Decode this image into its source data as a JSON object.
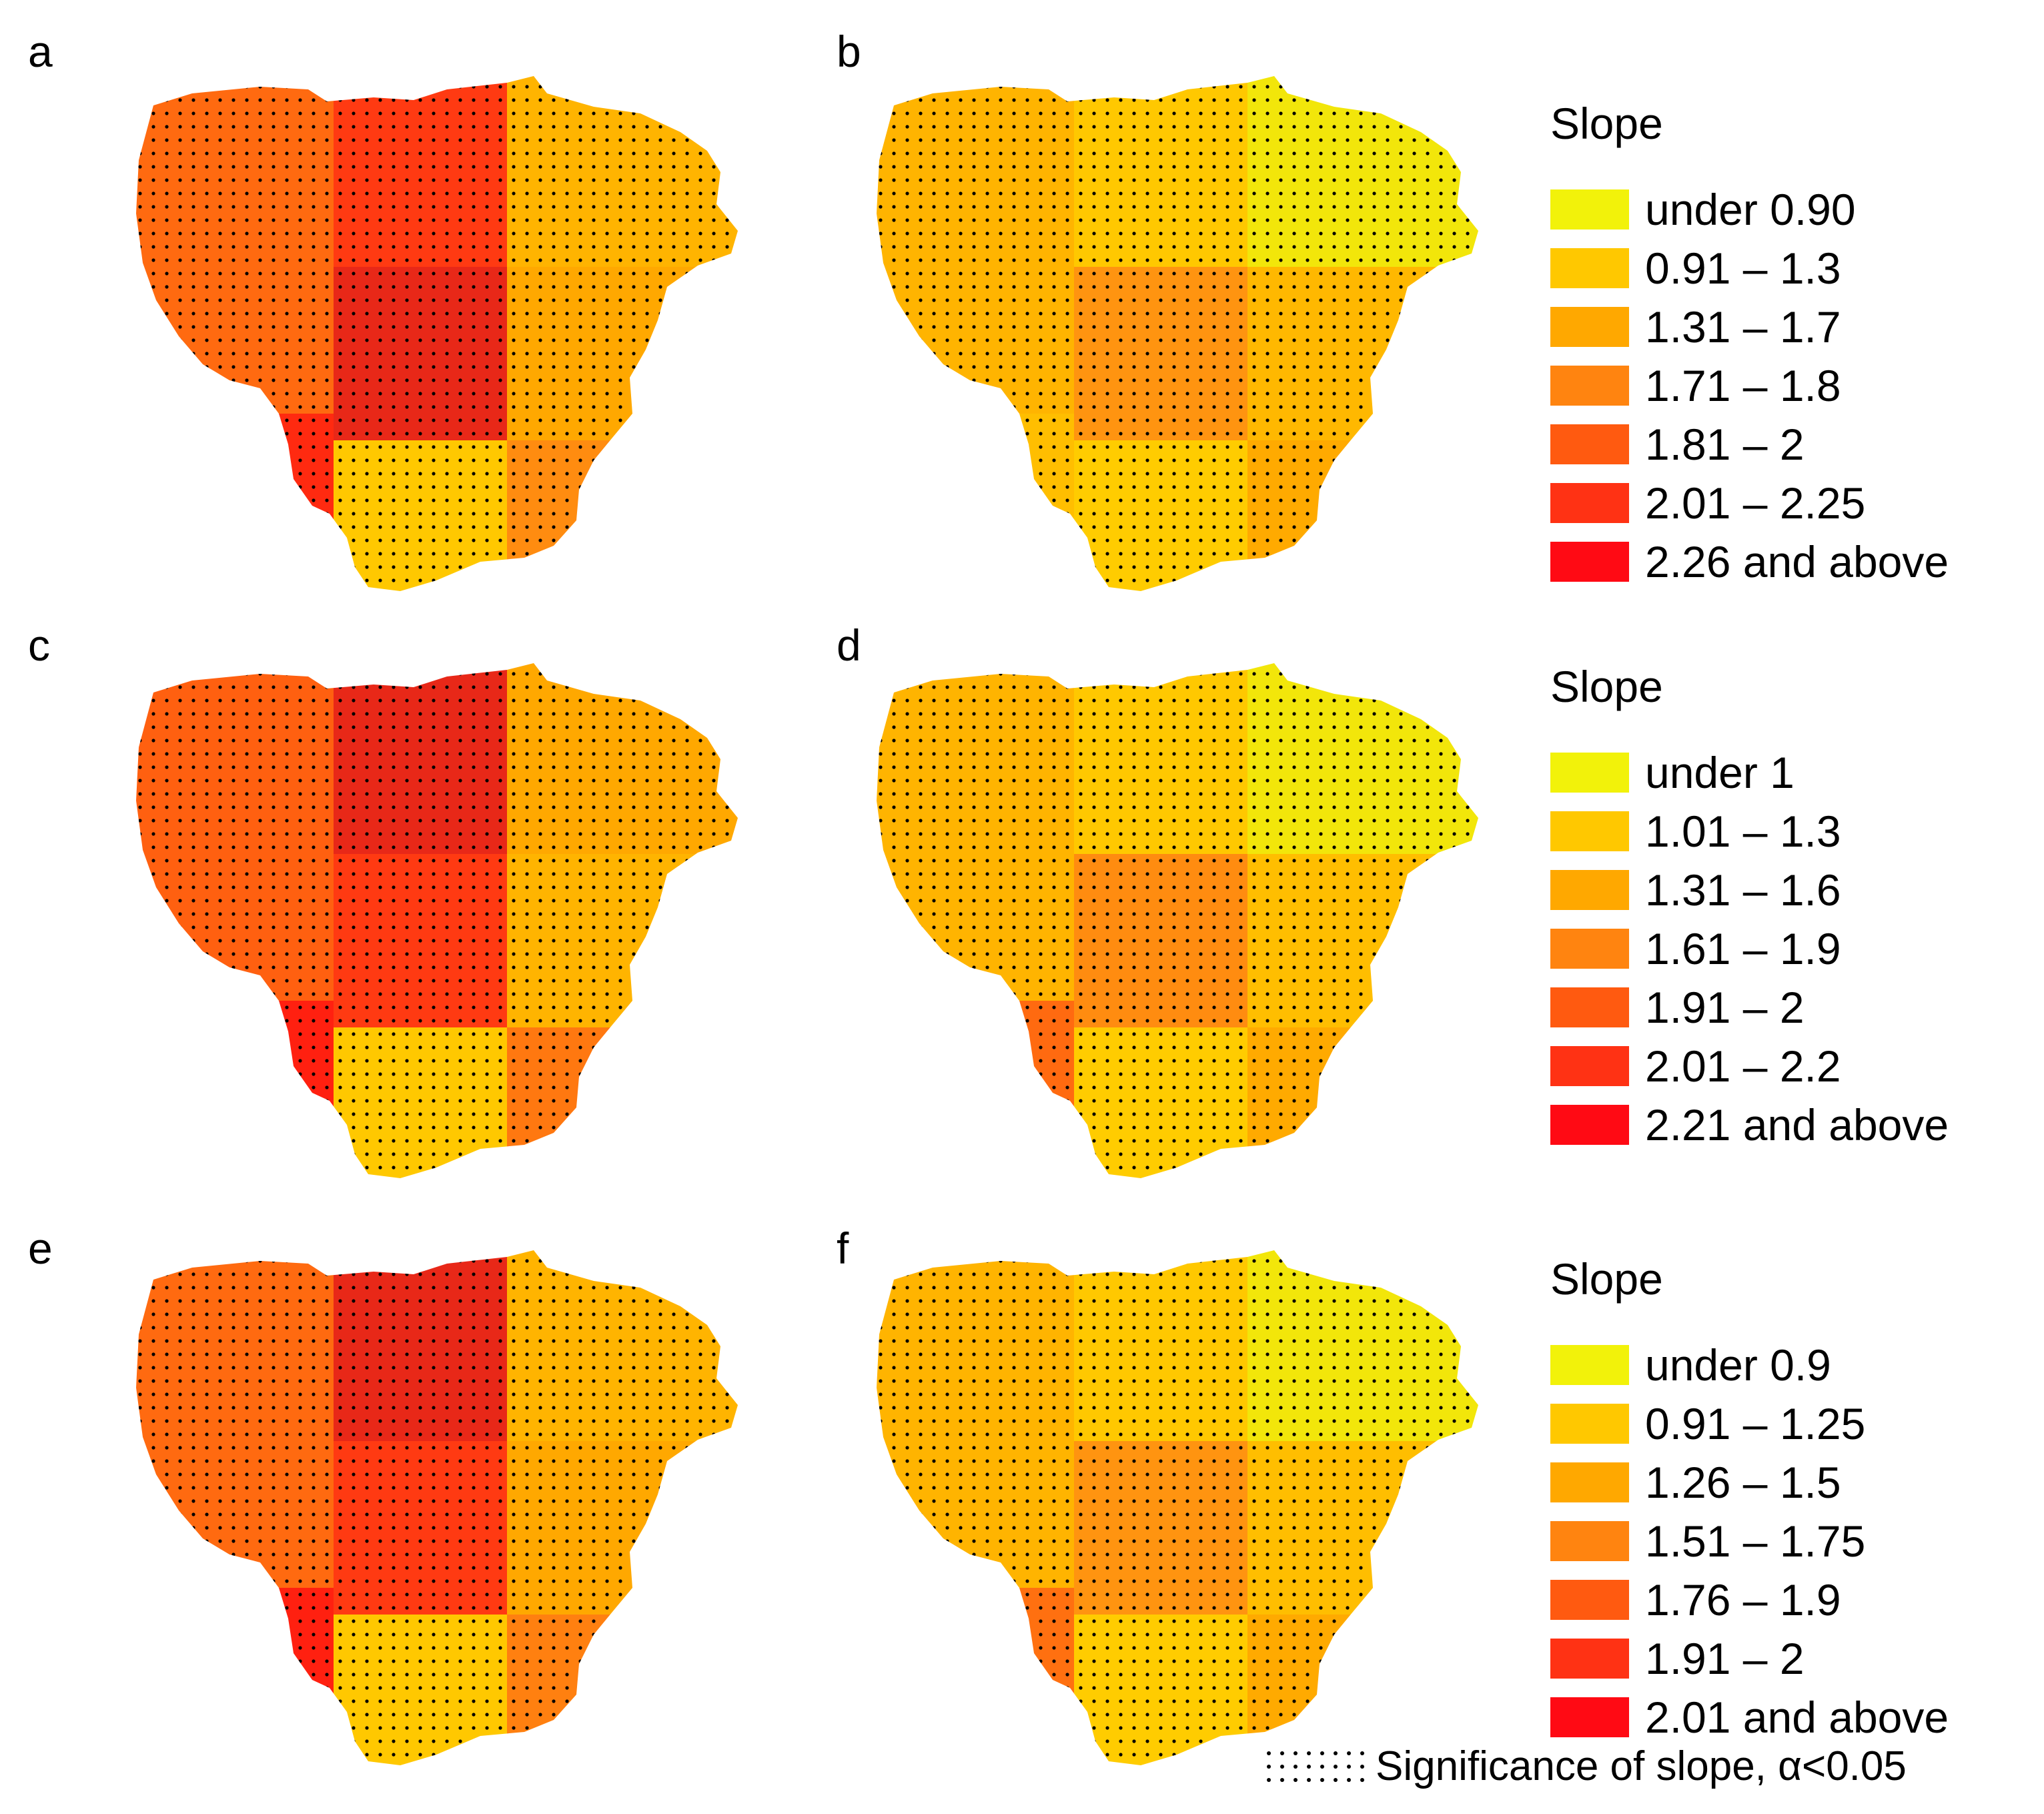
{
  "panels": [
    {
      "label": "a",
      "palette": [
        "#ff6a10",
        "#ff3a12",
        "#ffb400",
        "#e82818",
        "#ffa800",
        "#ff2a10",
        "#ffc800",
        "#ff8c10"
      ]
    },
    {
      "label": "b",
      "palette": [
        "#ffb400",
        "#ffc800",
        "#f2e60a",
        "#ff9410",
        "#ffb800",
        "#ffbe00",
        "#ffcc00",
        "#ffaa00"
      ]
    },
    {
      "label": "c",
      "palette": [
        "#ff6010",
        "#e82818",
        "#ffa800",
        "#ff3a12",
        "#ffb400",
        "#ff2010",
        "#ffc800",
        "#ff7810"
      ]
    },
    {
      "label": "d",
      "palette": [
        "#ffb400",
        "#ffc800",
        "#f2e60a",
        "#ff8c10",
        "#ffbe00",
        "#ff6a10",
        "#ffcc00",
        "#ffaa00"
      ]
    },
    {
      "label": "e",
      "palette": [
        "#ff6a10",
        "#e82818",
        "#ffb400",
        "#ff3a12",
        "#ffa800",
        "#ff2010",
        "#ffc800",
        "#ff8010"
      ]
    },
    {
      "label": "f",
      "palette": [
        "#ffb400",
        "#ffc800",
        "#f2e60a",
        "#ff9410",
        "#ffbe00",
        "#ff7010",
        "#ffcc00",
        "#ffaa00"
      ]
    }
  ],
  "legends": [
    {
      "title": "Slope",
      "items": [
        {
          "label": "under 0.90",
          "color": "#f2f20a"
        },
        {
          "label": "0.91 – 1.3",
          "color": "#ffc800"
        },
        {
          "label": "1.31 – 1.7",
          "color": "#ffa800"
        },
        {
          "label": "1.71 – 1.8",
          "color": "#ff8410"
        },
        {
          "label": "1.81 – 2",
          "color": "#ff5a10"
        },
        {
          "label": "2.01 – 2.25",
          "color": "#ff3214"
        },
        {
          "label": "2.26 and above",
          "color": "#ff0a14"
        }
      ]
    },
    {
      "title": "Slope",
      "items": [
        {
          "label": "under 1",
          "color": "#f2f20a"
        },
        {
          "label": "1.01 – 1.3",
          "color": "#ffc800"
        },
        {
          "label": "1.31 – 1.6",
          "color": "#ffa800"
        },
        {
          "label": "1.61 – 1.9",
          "color": "#ff8410"
        },
        {
          "label": "1.91 – 2",
          "color": "#ff5a10"
        },
        {
          "label": "2.01 – 2.2",
          "color": "#ff3214"
        },
        {
          "label": "2.21 and above",
          "color": "#ff0a14"
        }
      ]
    },
    {
      "title": "Slope",
      "items": [
        {
          "label": "under 0.9",
          "color": "#f2f20a"
        },
        {
          "label": "0.91 – 1.25",
          "color": "#ffc800"
        },
        {
          "label": "1.26 – 1.5",
          "color": "#ffa800"
        },
        {
          "label": "1.51 – 1.75",
          "color": "#ff8410"
        },
        {
          "label": "1.76 – 1.9",
          "color": "#ff5a10"
        },
        {
          "label": "1.91 – 2",
          "color": "#ff3214"
        },
        {
          "label": "2.01 and above",
          "color": "#ff0a14"
        }
      ]
    }
  ],
  "significance": {
    "label": "Significance of slope, α<0.05"
  }
}
